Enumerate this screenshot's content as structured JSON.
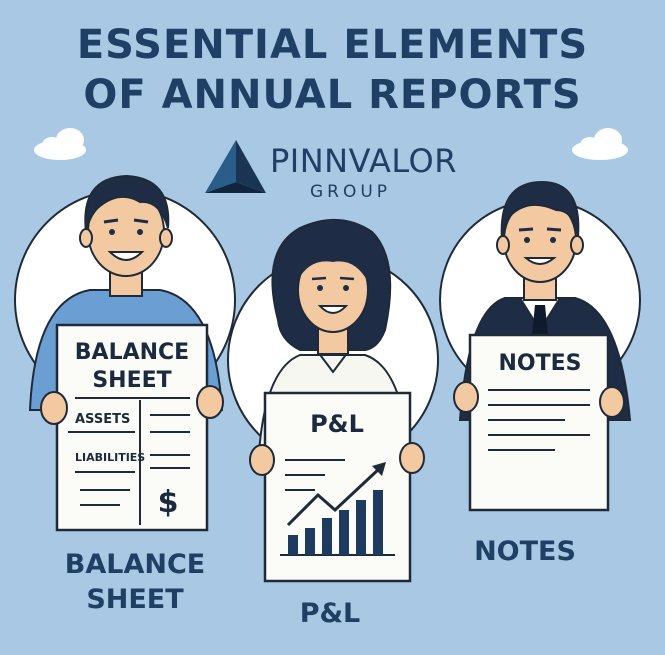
{
  "title": {
    "line1": "ESSENTIAL ELEMENTS",
    "line2": "OF ANNUAL REPORTS"
  },
  "brand": {
    "name": "PINNVALOR",
    "subtitle": "GROUP"
  },
  "documents": {
    "balance_sheet": {
      "heading_line1": "BALANCE",
      "heading_line2": "SHEET",
      "row1": "ASSETS",
      "row2": "LIABILITIES",
      "symbol": "$"
    },
    "pnl": {
      "heading": "P&L"
    },
    "notes": {
      "heading": "NOTES"
    }
  },
  "captions": {
    "balance_line1": "BALANCE",
    "balance_line2": "SHEET",
    "pnl": "P&L",
    "notes": "NOTES"
  },
  "colors": {
    "background": "#a9c8e3",
    "navy": "#1f3f64",
    "paper": "#fbfbf8",
    "skin": "#f3c9a2",
    "hair": "#1e2d45"
  }
}
